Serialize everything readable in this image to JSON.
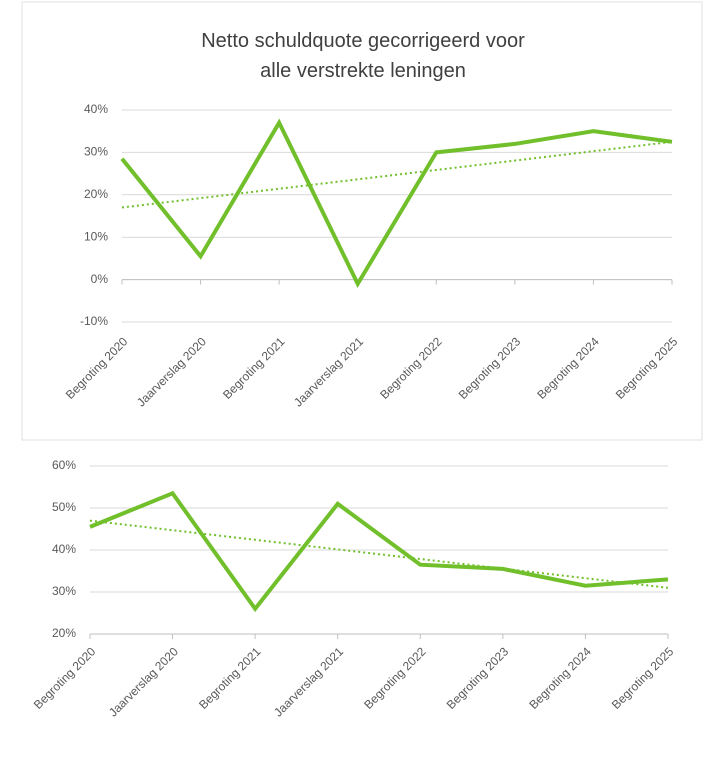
{
  "chart_data": [
    {
      "type": "line",
      "title": "Netto schuldquote gecorrigeerd voor alle verstrekte leningen",
      "categories": [
        "Begroting 2020",
        "Jaarverslag 2020",
        "Begroting 2021",
        "Jaarverslag 2021",
        "Begroting 2022",
        "Begroting 2023",
        "Begroting 2024",
        "Begroting 2025"
      ],
      "values": [
        28.5,
        5.5,
        37,
        -1,
        30,
        32,
        35,
        32.5
      ],
      "trendline": [
        17,
        32.5
      ],
      "color": "#70bf2b",
      "ylim": [
        -10,
        40
      ],
      "yticks": [
        {
          "value": -10,
          "label": "-10%"
        },
        {
          "value": 0,
          "label": "0%"
        },
        {
          "value": 10,
          "label": "10%"
        },
        {
          "value": 20,
          "label": "20%"
        },
        {
          "value": 30,
          "label": "30%"
        },
        {
          "value": 40,
          "label": "40%"
        }
      ],
      "grid": true
    },
    {
      "type": "line",
      "categories": [
        "Begroting 2020",
        "Jaarverslag 2020",
        "Begroting 2021",
        "Jaarverslag 2021",
        "Begroting 2022",
        "Begroting 2023",
        "Begroting 2024",
        "Begroting 2025"
      ],
      "values": [
        45.5,
        53.5,
        26,
        51,
        36.5,
        35.5,
        31.5,
        33
      ],
      "trendline": [
        47,
        31
      ],
      "color": "#70bf2b",
      "ylim": [
        20,
        60
      ],
      "yticks": [
        {
          "value": 20,
          "label": "20%"
        },
        {
          "value": 30,
          "label": "30%"
        },
        {
          "value": 40,
          "label": "40%"
        },
        {
          "value": 50,
          "label": "50%"
        },
        {
          "value": 60,
          "label": "60%"
        }
      ],
      "grid": true
    }
  ]
}
